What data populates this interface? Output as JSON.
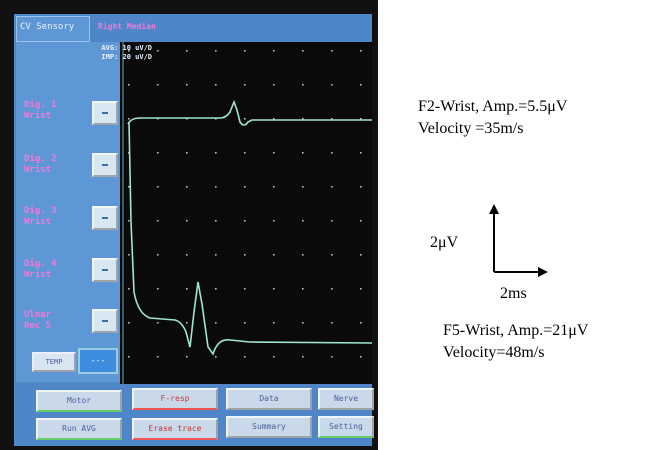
{
  "header": {
    "mode": "CV Sensory",
    "nerve": "Right Median"
  },
  "scales": [
    "AVG: 10 uV/D",
    "IMP: 20 uV/D"
  ],
  "sidebar": [
    [
      "Dig. 1",
      "Wrist"
    ],
    [
      "Dig. 2",
      "Wrist"
    ],
    [
      "Dig. 3",
      "Wrist"
    ],
    [
      "Dig. 4",
      "Wrist"
    ],
    [
      "Ulnar",
      "Rec  5"
    ]
  ],
  "temp": {
    "label": "TEMP",
    "value": "---"
  },
  "buttons": [
    "Motor",
    "F-resp",
    "Data",
    "Nerve",
    "Run AVG",
    "Erase trace",
    "Summary",
    "Setting"
  ],
  "annotations": {
    "top": [
      "F2-Wrist, Amp.=5.5μV",
      "Velocity =35m/s"
    ],
    "vscale": "2μV",
    "hscale": "2ms",
    "bottom": [
      "F5-Wrist, Amp.=21μV",
      "Velocity=48m/s"
    ]
  }
}
